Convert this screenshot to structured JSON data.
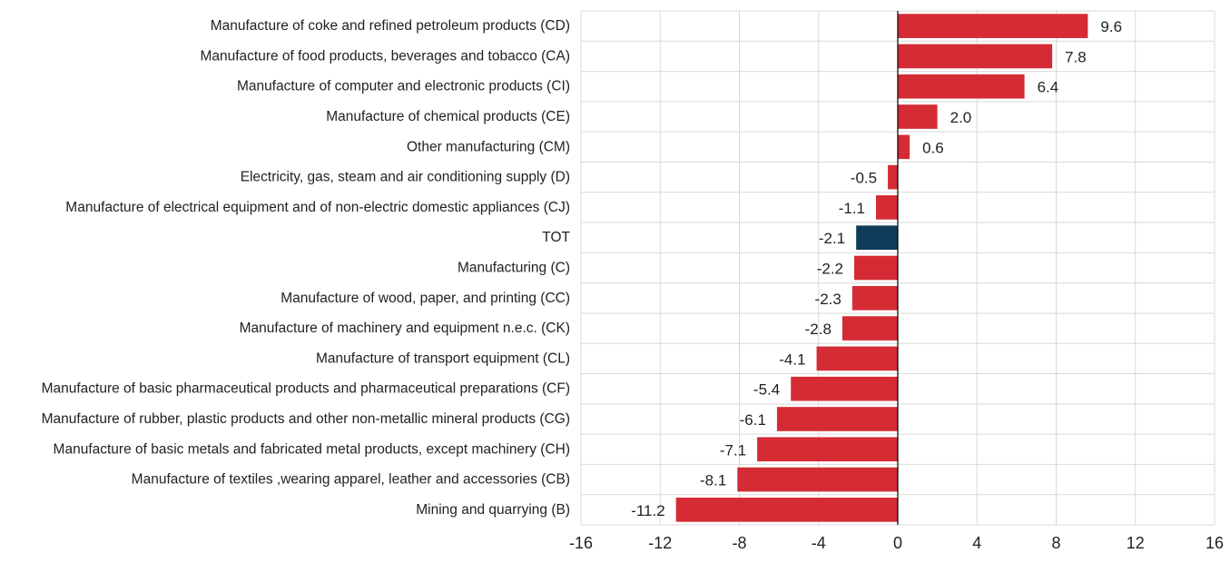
{
  "chart_data": {
    "type": "bar",
    "orientation": "horizontal",
    "title": "",
    "xlabel": "",
    "ylabel": "",
    "xlim": [
      -16,
      16
    ],
    "xticks": [
      -16,
      -12,
      -8,
      -4,
      0,
      4,
      8,
      12,
      16
    ],
    "grid": true,
    "legend": "none",
    "categories": [
      "Manufacture of coke and refined petroleum products (CD)",
      "Manufacture of food products, beverages and tobacco (CA)",
      "Manufacture of computer and electronic products (CI)",
      "Manufacture of chemical products (CE)",
      "Other manufacturing (CM)",
      "Electricity, gas, steam  and air conditioning supply (D)",
      "Manufacture of electrical equipment and of non-electric domestic appliances (CJ)",
      "TOT",
      "Manufacturing (C)",
      "Manufacture of wood, paper, and printing (CC)",
      "Manufacture of machinery and equipment n.e.c. (CK)",
      "Manufacture of transport equipment (CL)",
      "Manufacture of basic pharmaceutical products and pharmaceutical preparations (CF)",
      "Manufacture of rubber,  plastic products and other non-metallic mineral products (CG)",
      "Manufacture of basic metals and fabricated metal products, except machinery  (CH)",
      "Manufacture of textiles ,wearing apparel, leather and accessories (CB)",
      "Mining and quarrying (B)"
    ],
    "values": [
      9.6,
      7.8,
      6.4,
      2.0,
      0.6,
      -0.5,
      -1.1,
      -2.1,
      -2.2,
      -2.3,
      -2.8,
      -4.1,
      -5.4,
      -6.1,
      -7.1,
      -8.1,
      -11.2
    ],
    "value_labels": [
      "9.6",
      "7.8",
      "6.4",
      "2.0",
      "0.6",
      "-0.5",
      "-1.1",
      "-2.1",
      "-2.2",
      "-2.3",
      "-2.8",
      "-4.1",
      "-5.4",
      "-6.1",
      "-7.1",
      "-8.1",
      "-11.2"
    ],
    "colors": {
      "default": "#d52b34",
      "highlight": "#0e3b57",
      "highlight_category": "TOT",
      "grid": "#d9d9d9",
      "zero_line": "#000000"
    }
  }
}
